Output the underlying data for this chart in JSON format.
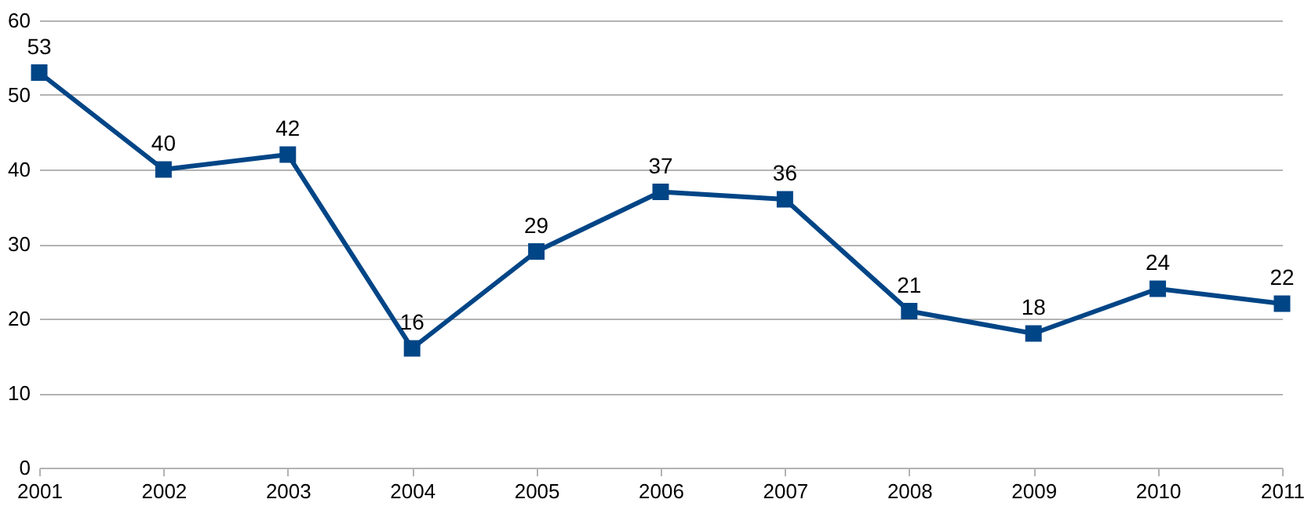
{
  "chart_data": {
    "type": "line",
    "categories": [
      "2001",
      "2002",
      "2003",
      "2004",
      "2005",
      "2006",
      "2007",
      "2008",
      "2009",
      "2010",
      "2011"
    ],
    "series": [
      {
        "color": "#004586",
        "values": [
          53,
          40,
          42,
          16,
          29,
          37,
          36,
          21,
          18,
          24,
          22
        ]
      }
    ],
    "ylim": [
      0,
      60
    ],
    "yticks": [
      0,
      10,
      20,
      30,
      40,
      50,
      60
    ],
    "grid": "y",
    "marker": "square",
    "line_style": "solid",
    "data_labels": true
  }
}
